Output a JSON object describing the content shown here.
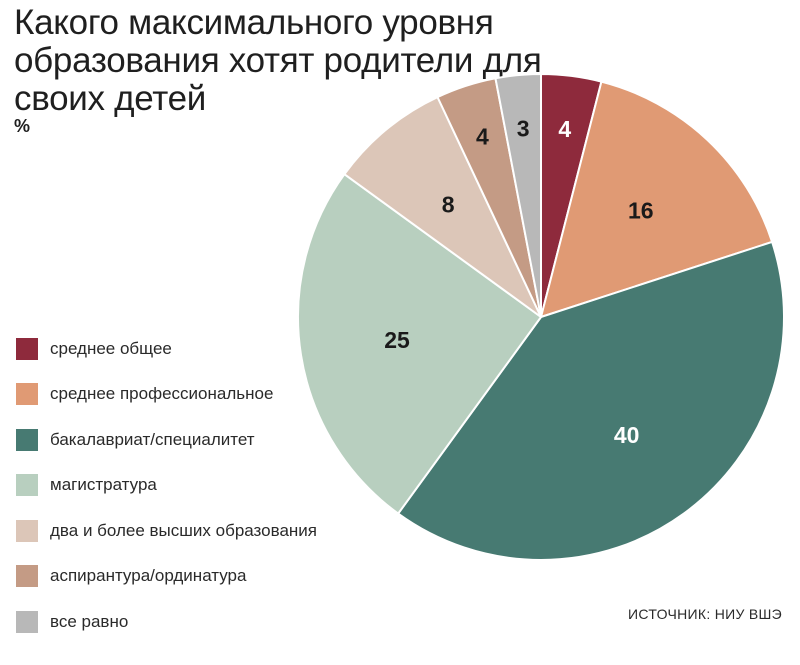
{
  "chart_data": {
    "type": "pie",
    "title": "Какого максимального уровня образования хотят родители для своих детей",
    "unit": "%",
    "source": "ИСТОЧНИК: НИУ ВШЭ",
    "legend_position": "left",
    "slices": [
      {
        "label": "среднее общее",
        "value": 4,
        "color": "#8e2a3c",
        "label_color": "#ffffff"
      },
      {
        "label": "среднее профессиональное",
        "value": 16,
        "color": "#e09a74",
        "label_color": "#1a1a1a"
      },
      {
        "label": "бакалавриат/специалитет",
        "value": 40,
        "color": "#477a72",
        "label_color": "#ffffff"
      },
      {
        "label": "магистратура",
        "value": 25,
        "color": "#b8cfbf",
        "label_color": "#1a1a1a"
      },
      {
        "label": "два и более высших образования",
        "value": 8,
        "color": "#dcc6b8",
        "label_color": "#1a1a1a"
      },
      {
        "label": "аспирантура/ординатура",
        "value": 4,
        "color": "#c49b85",
        "label_color": "#1a1a1a"
      },
      {
        "label": "все равно",
        "value": 3,
        "color": "#b8b8b8",
        "label_color": "#1a1a1a"
      }
    ]
  }
}
